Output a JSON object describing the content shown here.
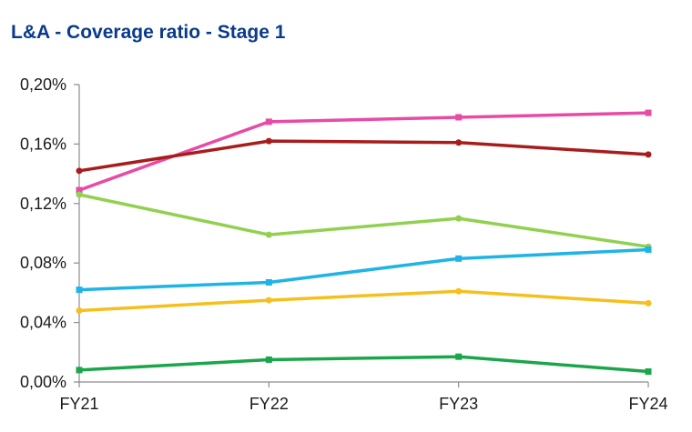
{
  "chart_data": {
    "type": "line",
    "title": "L&A - Coverage ratio - Stage 1",
    "xlabel": "",
    "ylabel": "",
    "categories": [
      "FY21",
      "FY22",
      "FY23",
      "FY24"
    ],
    "y_ticks": [
      "0,00%",
      "0,04%",
      "0,08%",
      "0,12%",
      "0,16%",
      "0,20%"
    ],
    "ylim": [
      0,
      0.2
    ],
    "grid": false,
    "legend": "none",
    "series": [
      {
        "color": "#e84aa6",
        "marker": "square",
        "values": [
          0.129,
          0.175,
          0.178,
          0.181
        ]
      },
      {
        "color": "#a81c1c",
        "marker": "circle",
        "values": [
          0.142,
          0.162,
          0.161,
          0.153
        ]
      },
      {
        "color": "#92d050",
        "marker": "circle",
        "values": [
          0.126,
          0.099,
          0.11,
          0.091
        ]
      },
      {
        "color": "#1fb4e6",
        "marker": "square",
        "values": [
          0.062,
          0.067,
          0.083,
          0.089
        ]
      },
      {
        "color": "#f5c01b",
        "marker": "circle",
        "values": [
          0.048,
          0.055,
          0.061,
          0.053
        ]
      },
      {
        "color": "#1aa64a",
        "marker": "square",
        "values": [
          0.008,
          0.015,
          0.017,
          0.007
        ]
      }
    ]
  }
}
